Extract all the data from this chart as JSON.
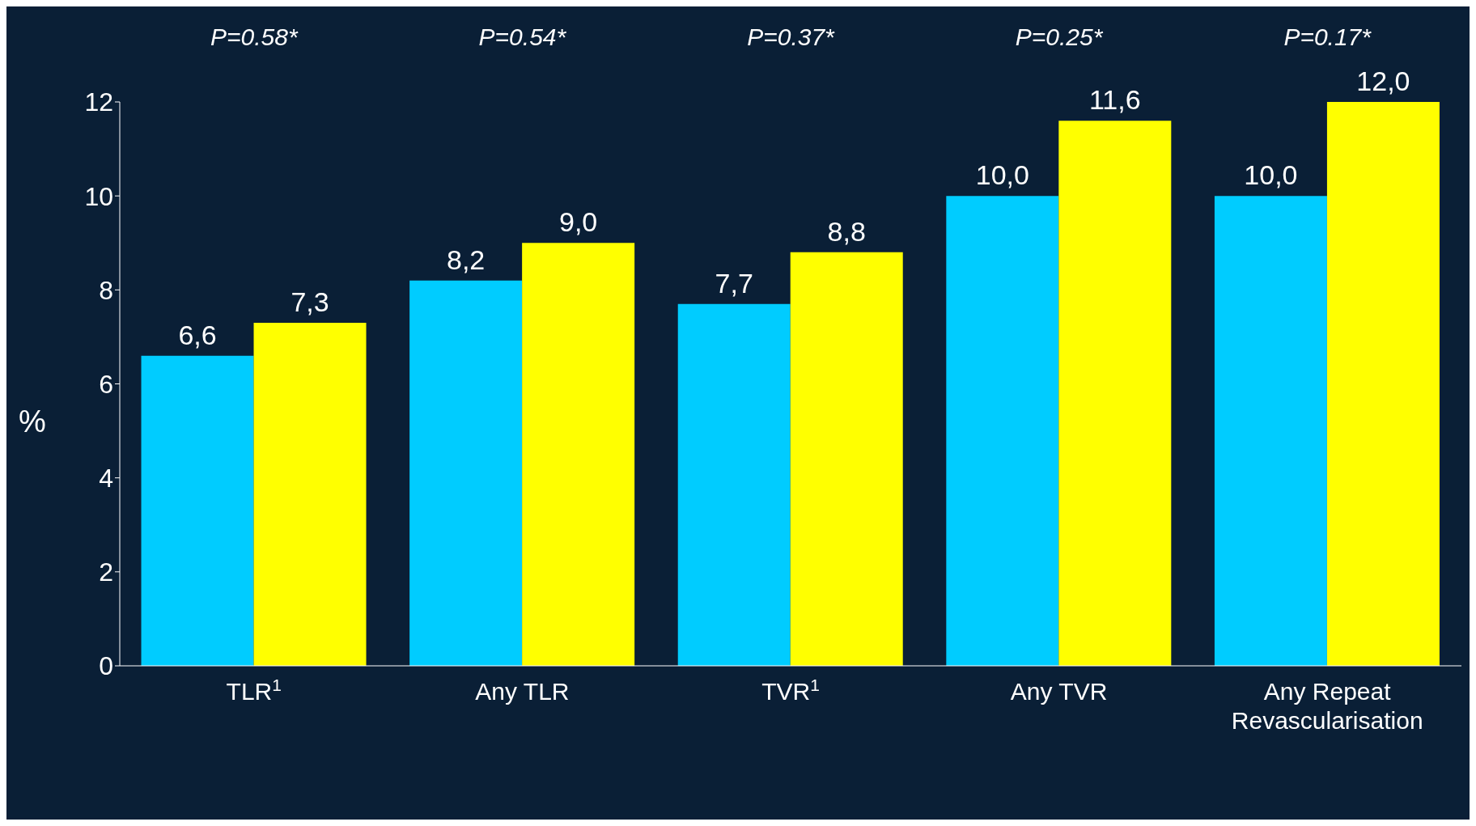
{
  "chart_data": {
    "type": "bar",
    "ylabel": "%",
    "categories": [
      "TLR$^{1}$",
      "Any TLR",
      "TVR$^{1}$",
      "Any TVR",
      "Any Repeat Revascularisation"
    ],
    "series": [
      {
        "color": "#00ccff",
        "values": [
          6.6,
          8.2,
          7.7,
          10.0,
          10.0
        ],
        "value_labels": [
          "6,6",
          "8,2",
          "7,7",
          "10,0",
          "10,0"
        ]
      },
      {
        "color": "#ffff00",
        "values": [
          7.3,
          9.0,
          8.8,
          11.6,
          12.0
        ],
        "value_labels": [
          "7,3",
          "9,0",
          "8,8",
          "11,6",
          "12,0"
        ]
      }
    ],
    "ylim": [
      0,
      12
    ],
    "yticks": [
      0,
      2,
      4,
      6,
      8,
      10,
      12
    ],
    "grid": false,
    "legend": false,
    "annotations": [
      "P=0.58*",
      "P=0.54*",
      "P=0.37*",
      "P=0.25*",
      "P=0.17*"
    ]
  }
}
